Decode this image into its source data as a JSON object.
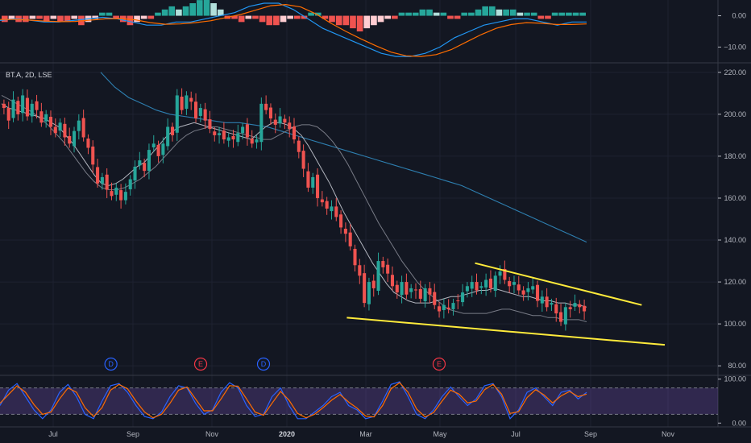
{
  "chart_data": {
    "type": "candlestick",
    "symbol_label": "BT.A, 2D, LSE",
    "x_ticks": [
      "Jul",
      "Sep",
      "Nov",
      "2020",
      "Mar",
      "May",
      "Jul",
      "Sep",
      "Nov"
    ],
    "x_ticks_bold": [
      "2020"
    ],
    "price": {
      "y_ticks": [
        "220.00",
        "200.00",
        "180.00",
        "160.00",
        "140.00",
        "120.00",
        "100.00",
        "80.00"
      ],
      "ylim": [
        77,
        223
      ],
      "ohlc_close": [
        203,
        197,
        207,
        200,
        209,
        199,
        205,
        202,
        196,
        200,
        194,
        191,
        196,
        189,
        186,
        192,
        197,
        189,
        184,
        176,
        167,
        170,
        164,
        161,
        165,
        159,
        163,
        169,
        175,
        178,
        173,
        183,
        186,
        180,
        186,
        194,
        190,
        209,
        202,
        209,
        206,
        198,
        203,
        197,
        193,
        190,
        191,
        188,
        189,
        188,
        191,
        194,
        189,
        186,
        188,
        205,
        202,
        198,
        195,
        199,
        196,
        193,
        188,
        182,
        174,
        165,
        170,
        160,
        158,
        155,
        156,
        151,
        146,
        143,
        137,
        128,
        123,
        110,
        120,
        117,
        130,
        127,
        124,
        118,
        115,
        120,
        114,
        117,
        116,
        112,
        117,
        114,
        109,
        106,
        109,
        107,
        110,
        111,
        115,
        118,
        120,
        116,
        118,
        121,
        117,
        123,
        125,
        121,
        118,
        120,
        116,
        114,
        117,
        118,
        111,
        113,
        108,
        110,
        105,
        101,
        108,
        107,
        110,
        108,
        106
      ],
      "sma_fast": [
        205,
        203,
        202,
        201,
        200,
        199,
        198,
        196,
        194,
        190,
        186,
        181,
        176,
        171,
        167,
        166,
        167,
        169,
        172,
        175,
        177,
        181,
        185,
        189,
        192,
        194,
        195,
        196,
        195,
        194,
        193,
        192,
        191,
        190,
        189,
        188,
        191,
        194,
        196,
        196,
        195,
        193,
        190,
        185,
        179,
        173,
        167,
        160,
        153,
        147,
        141,
        135,
        129,
        124,
        119,
        115,
        113,
        111,
        110,
        110,
        110,
        111,
        112,
        113,
        113,
        114,
        115,
        116,
        116,
        117,
        116,
        115,
        114,
        113,
        113,
        112,
        111,
        111,
        110,
        110,
        109,
        109,
        108
      ],
      "sma_slow": [
        209,
        207,
        205,
        203,
        201,
        198,
        195,
        191,
        187,
        182,
        177,
        172,
        168,
        165,
        164,
        164,
        165,
        167,
        169,
        172,
        175,
        179,
        183,
        187,
        190,
        192,
        193,
        194,
        194,
        193,
        192,
        191,
        190,
        189,
        188,
        188,
        190,
        192,
        194,
        195,
        195,
        194,
        191,
        187,
        182,
        176,
        169,
        162,
        155,
        148,
        142,
        136,
        130,
        125,
        120,
        116,
        113,
        110,
        107,
        106,
        105,
        105,
        105,
        105,
        106,
        107,
        107,
        106,
        105,
        104,
        104,
        103,
        103,
        102,
        102,
        102,
        101
      ],
      "sma_200": [
        220,
        213,
        208,
        205,
        202,
        200,
        199,
        198,
        197,
        196,
        196,
        195,
        194,
        192,
        190,
        188,
        186,
        184,
        182,
        180,
        178,
        176,
        174,
        172,
        170,
        168,
        166,
        163,
        160,
        157,
        154,
        151,
        148,
        145,
        142,
        139
      ],
      "trendlines": [
        {
          "from": {
            "date": "2020-06-03",
            "price": 129
          },
          "to": {
            "date": "2020-10-11",
            "price": 109
          }
        },
        {
          "from": {
            "date": "2020-02-24",
            "price": 103
          },
          "to": {
            "date": "2020-10-29",
            "price": 90
          }
        }
      ],
      "event_markers": [
        {
          "label": "D",
          "date": "2019-08-24",
          "color": "#2962ff"
        },
        {
          "label": "E",
          "date": "2019-11-02",
          "color": "#f23645"
        },
        {
          "label": "D",
          "date": "2019-12-21",
          "color": "#2962ff"
        },
        {
          "label": "E",
          "date": "2020-05-06",
          "color": "#f23645"
        }
      ]
    },
    "macd": {
      "y_ticks": [
        "0.00",
        "−10.00"
      ],
      "ylim": [
        -14,
        4
      ],
      "histogram": [
        -2,
        -1,
        -2,
        -2,
        -1,
        -1,
        -2,
        -1,
        -2,
        -2,
        -1,
        -3,
        -2,
        -1,
        1,
        1,
        -1,
        -2,
        -3,
        -2,
        -1,
        -1,
        1,
        2,
        3,
        2,
        3,
        4,
        5,
        6,
        4,
        2,
        -1,
        -1,
        -2,
        -1,
        -1,
        -2,
        -3,
        -3,
        -2,
        -1,
        -1,
        -1,
        1,
        1,
        -1,
        -2,
        -3,
        -3,
        -4,
        -5,
        -4,
        -3,
        -2,
        -1,
        -1,
        1,
        1,
        1,
        2,
        2,
        1,
        1,
        -1,
        -1,
        1,
        1,
        2,
        3,
        3,
        2,
        2,
        2,
        1,
        1,
        1,
        -1,
        -1,
        1,
        1,
        1,
        1,
        1
      ],
      "macd_line": [
        -1.5,
        -1,
        -1.4,
        -2,
        -2,
        -1.5,
        -1,
        -0.5,
        -1,
        -2,
        -3,
        -3,
        -2,
        -2,
        -1,
        0,
        1,
        3,
        4,
        4,
        2,
        -1,
        -4,
        -6,
        -8,
        -10,
        -12,
        -13,
        -13,
        -12,
        -10,
        -7,
        -5,
        -3,
        -2,
        -1,
        -1,
        -2,
        -3,
        -2,
        -2
      ],
      "signal_line": [
        -1.2,
        -1.2,
        -1.4,
        -1.7,
        -1.9,
        -1.8,
        -1.4,
        -1,
        -0.9,
        -1.3,
        -2.2,
        -2.7,
        -2.6,
        -2.2,
        -1.6,
        -0.6,
        0.4,
        1.8,
        3.2,
        3.6,
        2.8,
        0.6,
        -2.4,
        -5,
        -7.4,
        -9.6,
        -11.6,
        -12.8,
        -13,
        -12.4,
        -10.8,
        -8.4,
        -6,
        -4,
        -2.8,
        -2.2,
        -2.4,
        -2.8,
        -2.8,
        -2.6
      ]
    },
    "stochastic": {
      "y_ticks": [
        "100.00",
        "0.00"
      ],
      "ylim": [
        -5,
        105
      ],
      "band": [
        20,
        80
      ],
      "k_line": [
        40,
        75,
        90,
        60,
        30,
        10,
        30,
        70,
        88,
        60,
        20,
        10,
        50,
        85,
        90,
        70,
        40,
        15,
        10,
        25,
        60,
        85,
        80,
        45,
        20,
        30,
        70,
        92,
        80,
        40,
        15,
        20,
        60,
        80,
        40,
        10,
        10,
        25,
        40,
        60,
        70,
        40,
        30,
        10,
        15,
        50,
        88,
        94,
        60,
        20,
        10,
        30,
        60,
        82,
        60,
        40,
        55,
        85,
        90,
        60,
        10,
        30,
        70,
        80,
        60,
        40,
        70,
        75,
        55,
        70
      ],
      "d_line": [
        45,
        65,
        85,
        70,
        42,
        20,
        25,
        55,
        80,
        70,
        35,
        15,
        35,
        75,
        88,
        78,
        50,
        25,
        12,
        20,
        45,
        75,
        82,
        55,
        28,
        28,
        55,
        85,
        84,
        55,
        25,
        18,
        45,
        72,
        52,
        22,
        12,
        20,
        35,
        52,
        65,
        48,
        34,
        16,
        14,
        40,
        78,
        92,
        70,
        32,
        14,
        24,
        50,
        75,
        66,
        46,
        50,
        76,
        88,
        66,
        22,
        26,
        58,
        76,
        64,
        46,
        62,
        72,
        60,
        66
      ]
    }
  }
}
